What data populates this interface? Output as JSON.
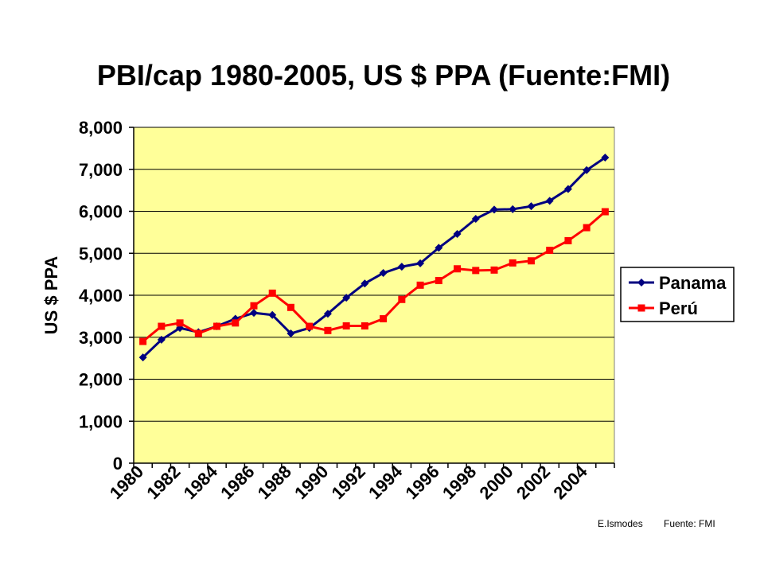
{
  "colors": {
    "plot_bg": "#FFFF99",
    "gridline": "#000000",
    "panama": "#000080",
    "peru": "#FF0000"
  },
  "footer": {
    "author": "E.Ismodes",
    "source": "Fuente: FMI"
  },
  "chart_data": {
    "type": "line",
    "title": "PBI/cap 1980-2005, US $ PPA (Fuente:FMI)",
    "ylabel": "US $ PPA",
    "xlabel": "",
    "ylim": [
      0,
      8000
    ],
    "yticks": [
      "0",
      "1,000",
      "2,000",
      "3,000",
      "4,000",
      "5,000",
      "6,000",
      "7,000",
      "8,000"
    ],
    "ytick_values": [
      0,
      1000,
      2000,
      3000,
      4000,
      5000,
      6000,
      7000,
      8000
    ],
    "x": [
      1980,
      1981,
      1982,
      1983,
      1984,
      1985,
      1986,
      1987,
      1988,
      1989,
      1990,
      1991,
      1992,
      1993,
      1994,
      1995,
      1996,
      1997,
      1998,
      1999,
      2000,
      2001,
      2002,
      2003,
      2004,
      2005
    ],
    "xtick_labels": [
      "1980",
      "1982",
      "1984",
      "1986",
      "1988",
      "1990",
      "1992",
      "1994",
      "1996",
      "1998",
      "2000",
      "2002",
      "2004"
    ],
    "grid": true,
    "legend_position": "right",
    "series": [
      {
        "name": "Panama",
        "marker": "diamond",
        "values": [
          2520,
          2940,
          3220,
          3120,
          3260,
          3440,
          3580,
          3530,
          3090,
          3220,
          3560,
          3940,
          4280,
          4530,
          4680,
          4760,
          5130,
          5460,
          5820,
          6040,
          6050,
          6120,
          6250,
          6530,
          6980,
          7280
        ]
      },
      {
        "name": "Perú",
        "marker": "square",
        "values": [
          2900,
          3260,
          3340,
          3090,
          3260,
          3340,
          3750,
          4050,
          3710,
          3260,
          3160,
          3270,
          3270,
          3440,
          3900,
          4240,
          4350,
          4630,
          4590,
          4600,
          4770,
          4820,
          5070,
          5300,
          5610,
          5990
        ]
      }
    ]
  }
}
